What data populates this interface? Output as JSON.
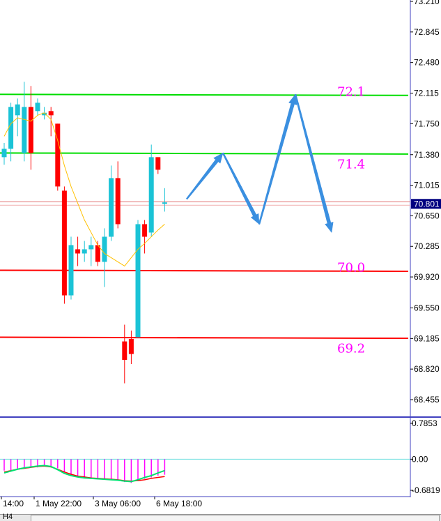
{
  "chart_data": [
    {
      "type": "candlestick",
      "symbol_timeframe_tab": "H4",
      "price_axis_ticks": [
        "73.210",
        "72.845",
        "72.480",
        "72.115",
        "71.750",
        "71.380",
        "71.015",
        "70.650",
        "70.285",
        "69.920",
        "69.550",
        "69.185",
        "68.820",
        "68.455"
      ],
      "ylim": [
        68.3,
        73.21
      ],
      "current_price_label": "70.801",
      "current_price": 70.801,
      "time_axis_labels": [
        "14:00",
        "1 May 22:00",
        "3 May 06:00",
        "6 May 18:00"
      ],
      "candles": [
        {
          "o": 71.35,
          "h": 71.52,
          "l": 71.26,
          "c": 71.45
        },
        {
          "o": 71.45,
          "h": 72.0,
          "l": 71.3,
          "c": 71.95
        },
        {
          "o": 71.85,
          "h": 72.05,
          "l": 71.6,
          "c": 71.98
        },
        {
          "o": 71.4,
          "h": 72.25,
          "l": 71.3,
          "c": 71.95
        },
        {
          "o": 71.95,
          "h": 72.2,
          "l": 71.2,
          "c": 71.4
        },
        {
          "o": 71.9,
          "h": 72.05,
          "l": 71.85,
          "c": 72.0
        },
        {
          "o": 71.85,
          "h": 71.95,
          "l": 71.8,
          "c": 71.88
        },
        {
          "o": 71.9,
          "h": 71.95,
          "l": 71.6,
          "c": 71.85
        },
        {
          "o": 71.75,
          "h": 71.75,
          "l": 70.95,
          "c": 71.0
        },
        {
          "o": 70.95,
          "h": 71.0,
          "l": 69.6,
          "c": 69.7
        },
        {
          "o": 69.7,
          "h": 70.4,
          "l": 69.65,
          "c": 70.3
        },
        {
          "o": 70.25,
          "h": 70.4,
          "l": 70.05,
          "c": 70.2
        },
        {
          "o": 70.2,
          "h": 70.35,
          "l": 70.1,
          "c": 70.25
        },
        {
          "o": 70.25,
          "h": 70.4,
          "l": 70.05,
          "c": 70.3
        },
        {
          "o": 70.3,
          "h": 70.35,
          "l": 70.05,
          "c": 70.1
        },
        {
          "o": 70.1,
          "h": 70.5,
          "l": 69.8,
          "c": 70.4
        },
        {
          "o": 70.4,
          "h": 71.25,
          "l": 70.35,
          "c": 71.1
        },
        {
          "o": 71.1,
          "h": 71.3,
          "l": 70.5,
          "c": 70.55
        },
        {
          "o": 69.15,
          "h": 69.35,
          "l": 68.65,
          "c": 68.93
        },
        {
          "o": 69.18,
          "h": 69.28,
          "l": 68.88,
          "c": 69.0
        },
        {
          "o": 69.2,
          "h": 70.6,
          "l": 69.2,
          "c": 70.55
        },
        {
          "o": 70.55,
          "h": 70.6,
          "l": 70.2,
          "c": 70.4
        },
        {
          "o": 70.45,
          "h": 71.5,
          "l": 70.4,
          "c": 71.35
        },
        {
          "o": 71.35,
          "h": 71.35,
          "l": 71.15,
          "c": 71.2
        },
        {
          "o": 70.8,
          "h": 70.98,
          "l": 70.7,
          "c": 70.81
        }
      ],
      "moving_average": [
        71.6,
        71.75,
        71.82,
        71.8,
        71.78,
        71.85,
        71.88,
        71.8,
        71.55,
        71.25,
        71.0,
        70.8,
        70.6,
        70.45,
        70.3,
        70.2,
        70.15,
        70.1,
        70.05,
        70.15,
        70.25,
        70.32,
        70.4,
        70.48,
        70.55
      ],
      "levels": [
        {
          "value": 72.1,
          "label": "72.1",
          "color": "#00dd00"
        },
        {
          "value": 71.4,
          "label": "71.4",
          "color": "#00dd00"
        },
        {
          "value": 70.0,
          "label": "70.0",
          "color": "#ff0000"
        },
        {
          "value": 69.2,
          "label": "69.2",
          "color": "#ff0000"
        }
      ],
      "projection_path": [
        {
          "step": 0,
          "price": 70.85
        },
        {
          "step": 1,
          "price": 71.4
        },
        {
          "step": 2,
          "price": 70.55
        },
        {
          "step": 3,
          "price": 72.1
        },
        {
          "step": 4,
          "price": 70.45
        }
      ],
      "colors": {
        "bull": "#1ac3d6",
        "bear": "#ff0000",
        "ma": "#ffc000",
        "projection": "#3a8fe0",
        "level_text": "#ff00ff",
        "bid_line": "#e07070",
        "price_label_bg": "#000080"
      }
    },
    {
      "type": "oscillator",
      "axis_ticks": [
        "0.7853",
        "0.00",
        "-0.6819"
      ],
      "ylim": [
        -0.6819,
        0.7853
      ],
      "histogram": [
        -0.25,
        -0.25,
        -0.22,
        -0.2,
        -0.18,
        -0.18,
        -0.15,
        -0.15,
        -0.2,
        -0.28,
        -0.35,
        -0.38,
        -0.4,
        -0.42,
        -0.42,
        -0.45,
        -0.43,
        -0.45,
        -0.5,
        -0.52,
        -0.48,
        -0.43,
        -0.4,
        -0.36,
        -0.34
      ],
      "signal": [
        -0.28,
        -0.25,
        -0.22,
        -0.2,
        -0.18,
        -0.16,
        -0.15,
        -0.17,
        -0.22,
        -0.28,
        -0.33,
        -0.37,
        -0.39,
        -0.41,
        -0.42,
        -0.43,
        -0.44,
        -0.45,
        -0.47,
        -0.48,
        -0.47,
        -0.45,
        -0.42,
        -0.4,
        -0.38
      ],
      "main_line": [
        -0.3,
        -0.26,
        -0.22,
        -0.19,
        -0.17,
        -0.15,
        -0.14,
        -0.16,
        -0.23,
        -0.31,
        -0.36,
        -0.39,
        -0.41,
        -0.42,
        -0.43,
        -0.44,
        -0.45,
        -0.46,
        -0.48,
        -0.49,
        -0.45,
        -0.4,
        -0.36,
        -0.3,
        -0.25
      ],
      "colors": {
        "histogram": "#ff00ff",
        "signal": "#ff0000",
        "main": "#00e070",
        "zero": "#66dddd"
      }
    }
  ]
}
